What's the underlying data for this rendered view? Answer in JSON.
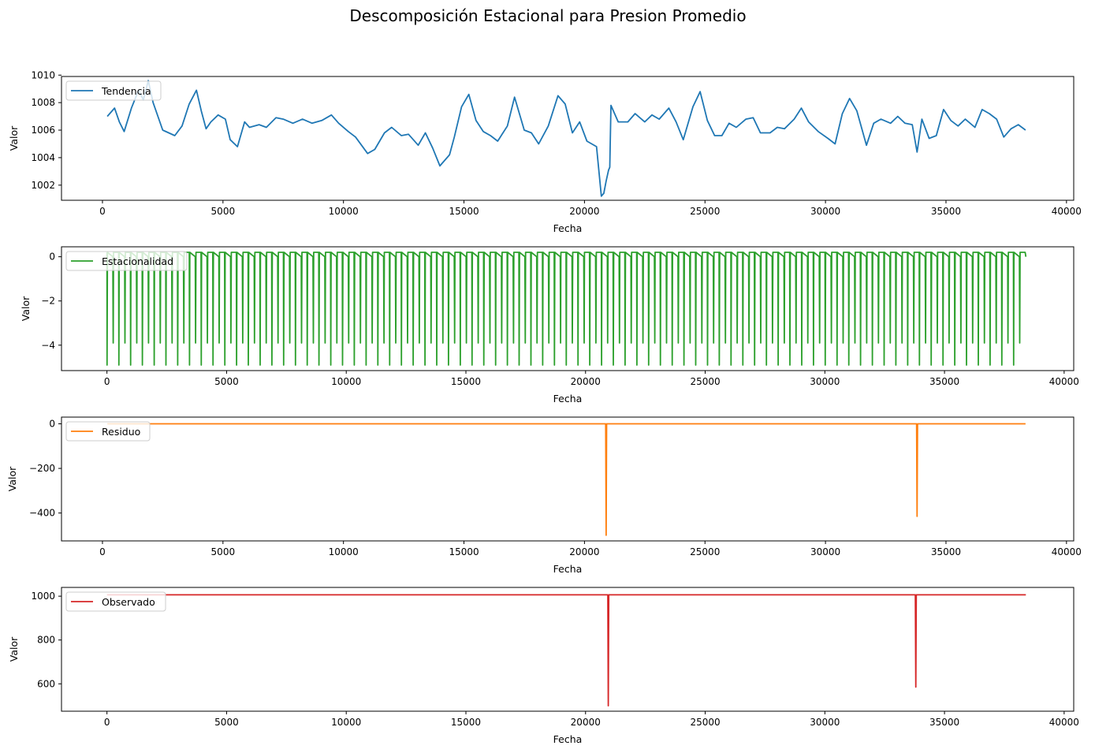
{
  "figure": {
    "title": "Descomposición Estacional para Presion Promedio"
  },
  "chart_data": [
    {
      "type": "line",
      "name": "trend",
      "legend": "Tendencia",
      "color": "#1f77b4",
      "xlabel": "Fecha",
      "ylabel": "Valor",
      "xlim": [
        -1700,
        40300
      ],
      "ylim": [
        1000.9,
        1009.9
      ],
      "xticks": [
        0,
        5000,
        10000,
        15000,
        20000,
        25000,
        30000,
        35000,
        40000
      ],
      "yticks": [
        1002,
        1004,
        1006,
        1008,
        1010
      ],
      "x": [
        200,
        500,
        700,
        900,
        1200,
        1500,
        1700,
        1900,
        2100,
        2500,
        3000,
        3300,
        3600,
        3900,
        4100,
        4300,
        4500,
        4800,
        5100,
        5300,
        5600,
        5900,
        6100,
        6500,
        6800,
        7200,
        7500,
        7900,
        8300,
        8700,
        9100,
        9500,
        9800,
        10200,
        10500,
        11000,
        11300,
        11700,
        12000,
        12400,
        12700,
        13100,
        13400,
        13700,
        14000,
        14400,
        14600,
        14900,
        15200,
        15500,
        15800,
        16100,
        16400,
        16800,
        17100,
        17500,
        17800,
        18100,
        18500,
        18900,
        19200,
        19500,
        19800,
        20100,
        20300,
        20500,
        20700,
        20750,
        20800,
        20900,
        21000,
        21050,
        21100,
        21400,
        21800,
        22100,
        22500,
        22800,
        23100,
        23500,
        23800,
        24100,
        24500,
        24800,
        25100,
        25400,
        25700,
        26000,
        26300,
        26700,
        27000,
        27300,
        27700,
        28000,
        28300,
        28700,
        29000,
        29300,
        29700,
        30100,
        30400,
        30700,
        31000,
        31300,
        31700,
        32000,
        32300,
        32700,
        33000,
        33300,
        33600,
        33800,
        34000,
        34300,
        34600,
        34900,
        35200,
        35500,
        35800,
        36200,
        36500,
        36800,
        37100,
        37400,
        37700,
        38000,
        38300
      ],
      "y": [
        1007.0,
        1007.6,
        1006.6,
        1005.9,
        1007.6,
        1008.9,
        1008.2,
        1009.6,
        1008.0,
        1006.0,
        1005.6,
        1006.3,
        1007.9,
        1008.9,
        1007.4,
        1006.1,
        1006.6,
        1007.1,
        1006.8,
        1005.3,
        1004.8,
        1006.6,
        1006.2,
        1006.4,
        1006.2,
        1006.9,
        1006.8,
        1006.5,
        1006.8,
        1006.5,
        1006.7,
        1007.1,
        1006.5,
        1005.9,
        1005.5,
        1004.3,
        1004.6,
        1005.8,
        1006.2,
        1005.6,
        1005.7,
        1004.9,
        1005.8,
        1004.7,
        1003.4,
        1004.2,
        1005.5,
        1007.7,
        1008.6,
        1006.7,
        1005.9,
        1005.6,
        1005.2,
        1006.3,
        1008.4,
        1006.0,
        1005.8,
        1005.0,
        1006.3,
        1008.5,
        1007.9,
        1005.8,
        1006.6,
        1005.2,
        1005.0,
        1004.8,
        1001.2,
        1001.3,
        1001.4,
        1002.3,
        1003.1,
        1003.3,
        1007.8,
        1006.6,
        1006.6,
        1007.2,
        1006.6,
        1007.1,
        1006.8,
        1007.6,
        1006.6,
        1005.3,
        1007.7,
        1008.8,
        1006.7,
        1005.6,
        1005.6,
        1006.5,
        1006.2,
        1006.8,
        1006.9,
        1005.8,
        1005.8,
        1006.2,
        1006.1,
        1006.8,
        1007.6,
        1006.6,
        1005.9,
        1005.4,
        1005.0,
        1007.2,
        1008.3,
        1007.4,
        1004.9,
        1006.5,
        1006.8,
        1006.5,
        1007.0,
        1006.5,
        1006.4,
        1004.4,
        1006.8,
        1005.4,
        1005.6,
        1007.5,
        1006.7,
        1006.3,
        1006.8,
        1006.2,
        1007.5,
        1007.2,
        1006.8,
        1005.5,
        1006.1,
        1006.4,
        1006.0
      ]
    },
    {
      "type": "line",
      "name": "seasonal",
      "legend": "Estacionalidad",
      "color": "#2ca02c",
      "xlabel": "Fecha",
      "ylabel": "Valor",
      "xlim": [
        -1900,
        40400
      ],
      "ylim": [
        -5.15,
        0.45
      ],
      "xticks": [
        0,
        5000,
        10000,
        15000,
        20000,
        25000,
        30000,
        35000,
        40000
      ],
      "yticks": [
        -4,
        -2,
        0
      ],
      "x_start": 0,
      "x_end": 38400,
      "period_approx": 492,
      "max": 0.2,
      "min": -4.9,
      "secondary_min": -3.9
    },
    {
      "type": "line",
      "name": "residual",
      "legend": "Residuo",
      "color": "#ff7f0e",
      "xlabel": "Fecha",
      "ylabel": "Valor",
      "xlim": [
        -1700,
        40300
      ],
      "ylim": [
        -525,
        30
      ],
      "xticks": [
        0,
        5000,
        10000,
        15000,
        20000,
        25000,
        30000,
        35000,
        40000
      ],
      "yticks": [
        -400,
        -200,
        0
      ],
      "x_start": 200,
      "x_end": 38300,
      "baseline": 0,
      "spikes": [
        {
          "x": 20900,
          "y": -500
        },
        {
          "x": 33800,
          "y": -415
        }
      ]
    },
    {
      "type": "line",
      "name": "observed",
      "legend": "Observado",
      "color": "#d62728",
      "xlabel": "Fecha",
      "ylabel": "Valor",
      "xlim": [
        -1900,
        40400
      ],
      "ylim": [
        475,
        1040
      ],
      "xticks": [
        0,
        5000,
        10000,
        15000,
        20000,
        25000,
        30000,
        35000,
        40000
      ],
      "yticks": [
        600,
        800,
        1000
      ],
      "x_start": 0,
      "x_end": 38400,
      "baseline": 1006,
      "spikes": [
        {
          "x": 20950,
          "y": 500
        },
        {
          "x": 33800,
          "y": 585
        }
      ]
    }
  ]
}
